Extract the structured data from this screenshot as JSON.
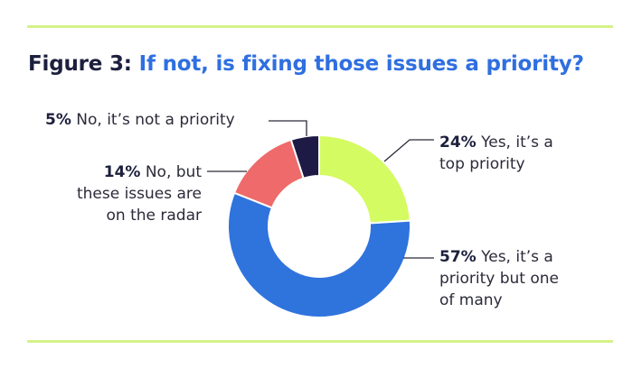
{
  "figure": {
    "number_label": "Figure 3:",
    "question": "If not, is fixing those issues a priority?"
  },
  "colors": {
    "accent_rule": "#d4f28a",
    "title_number": "#1c1f3d",
    "title_question": "#2f6fe0"
  },
  "chart_data": {
    "type": "pie",
    "donut": true,
    "slices": [
      {
        "percent_label": "24%",
        "value": 24,
        "label_lines": [
          "Yes, it’s a",
          "top priority"
        ],
        "color": "#d4fb61"
      },
      {
        "percent_label": "57%",
        "value": 57,
        "label_lines": [
          "Yes, it’s a",
          "priority but one",
          "of many"
        ],
        "color": "#2f73dd"
      },
      {
        "percent_label": "14%",
        "value": 14,
        "label_lines": [
          "No, but",
          "these issues are",
          "on the radar"
        ],
        "color": "#ef6a6a"
      },
      {
        "percent_label": "5%",
        "value": 5,
        "label_lines": [
          "No, it’s not a priority"
        ],
        "color": "#1d1b45"
      }
    ]
  }
}
